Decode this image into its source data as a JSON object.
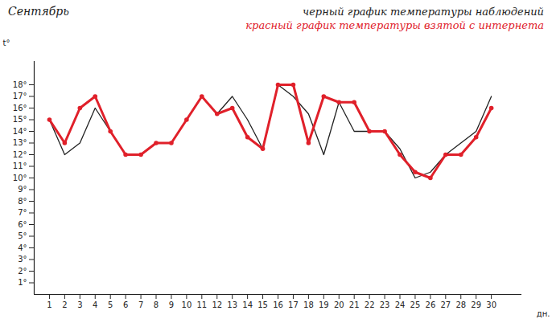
{
  "chart_data": {
    "type": "line",
    "title": "Сентябрь",
    "x_label": "дн.",
    "y_label": "t°",
    "x": [
      1,
      2,
      3,
      4,
      5,
      6,
      7,
      8,
      9,
      10,
      11,
      12,
      13,
      14,
      15,
      16,
      17,
      18,
      19,
      20,
      21,
      22,
      23,
      24,
      25,
      26,
      27,
      28,
      29,
      30
    ],
    "series": [
      {
        "name": "черный график температуры наблюдений",
        "color": "#222222",
        "marker": "none",
        "line_style": "solid",
        "values": [
          15,
          12,
          13,
          16,
          14,
          12,
          12,
          13,
          13,
          15,
          17,
          15.5,
          17,
          15,
          12.5,
          18,
          17,
          15.5,
          12,
          16.5,
          14,
          14,
          14,
          12.5,
          10,
          10.5,
          12,
          13,
          14,
          17
        ]
      },
      {
        "name": "красный график температуры взятой с интернета",
        "color": "#e0202a",
        "marker": "circle",
        "line_style": "solid",
        "values": [
          15,
          13,
          16,
          17,
          14,
          12,
          12,
          13,
          13,
          15,
          17,
          15.5,
          16,
          13.5,
          12.5,
          18,
          18,
          13,
          17,
          16.5,
          16.5,
          14,
          14,
          12,
          10.5,
          10,
          12,
          12,
          13.5,
          16
        ]
      }
    ],
    "xlim": [
      0,
      32
    ],
    "xticks": [
      1,
      2,
      3,
      4,
      5,
      6,
      7,
      8,
      9,
      10,
      11,
      12,
      13,
      14,
      15,
      16,
      17,
      18,
      19,
      20,
      21,
      22,
      23,
      24,
      25,
      26,
      27,
      28,
      29,
      30
    ],
    "ylim": [
      0,
      20
    ],
    "yticks": [
      {
        "value": 1,
        "label": "1°"
      },
      {
        "value": 2,
        "label": "2°"
      },
      {
        "value": 3,
        "label": "3°"
      },
      {
        "value": 4,
        "label": "4°"
      },
      {
        "value": 5,
        "label": "5°"
      },
      {
        "value": 6,
        "label": "6°"
      },
      {
        "value": 7,
        "label": "7°"
      },
      {
        "value": 8,
        "label": "8°"
      },
      {
        "value": 9,
        "label": "9°"
      },
      {
        "value": 10,
        "label": "10°"
      },
      {
        "value": 11,
        "label": "11°"
      },
      {
        "value": 12,
        "label": "12°"
      },
      {
        "value": 13,
        "label": "13°"
      },
      {
        "value": 14,
        "label": "14°"
      },
      {
        "value": 15,
        "label": "15°"
      },
      {
        "value": 16,
        "label": "16°"
      },
      {
        "value": 17,
        "label": "17°"
      },
      {
        "value": 18,
        "label": "18°"
      }
    ],
    "grid": false,
    "legend": "top-right"
  }
}
